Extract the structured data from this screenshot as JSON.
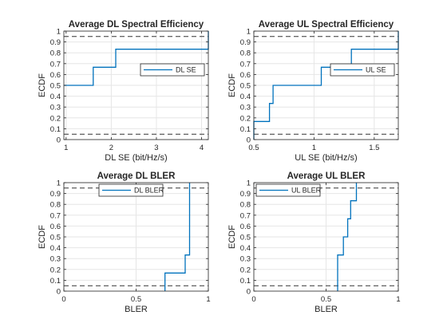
{
  "figure": {
    "background": "#ffffff"
  },
  "chart_data": [
    {
      "type": "line",
      "step": true,
      "title": "Average DL Spectral Efficiency",
      "xlabel": "DL SE (bit/Hz/s)",
      "ylabel": "ECDF",
      "xlim": [
        0.95,
        4.15
      ],
      "ylim": [
        0,
        1
      ],
      "xticks": [
        1,
        2,
        3,
        4
      ],
      "xtick_labels": [
        "1",
        "2",
        "3",
        "4"
      ],
      "yticks": [
        0,
        0.1,
        0.2,
        0.3,
        0.4,
        0.5,
        0.6,
        0.7,
        0.8,
        0.9,
        1
      ],
      "ytick_labels": [
        "0",
        "0.1",
        "0.2",
        "0.3",
        "0.4",
        "0.5",
        "0.6",
        "0.7",
        "0.8",
        "0.9",
        "1"
      ],
      "grid": true,
      "legend_position": "right",
      "reference_lines": [
        0.05,
        0.95
      ],
      "series": [
        {
          "name": "DL SE",
          "color": "#0072BD",
          "x": [
            0.95,
            1.6,
            1.6,
            2.1,
            2.1,
            4.15,
            4.15
          ],
          "y": [
            0.5,
            0.5,
            0.667,
            0.667,
            0.833,
            0.833,
            1.0
          ]
        }
      ]
    },
    {
      "type": "line",
      "step": true,
      "title": "Average UL Spectral Efficiency",
      "xlabel": "UL SE (bit/Hz/s)",
      "ylabel": "ECDF",
      "xlim": [
        0.5,
        1.7
      ],
      "ylim": [
        0,
        1
      ],
      "xticks": [
        0.5,
        1,
        1.5
      ],
      "xtick_labels": [
        "0.5",
        "1",
        "1.5"
      ],
      "yticks": [
        0,
        0.1,
        0.2,
        0.3,
        0.4,
        0.5,
        0.6,
        0.7,
        0.8,
        0.9,
        1
      ],
      "ytick_labels": [
        "0",
        "0.1",
        "0.2",
        "0.3",
        "0.4",
        "0.5",
        "0.6",
        "0.7",
        "0.8",
        "0.9",
        "1"
      ],
      "grid": true,
      "legend_position": "right",
      "reference_lines": [
        0.05,
        0.95
      ],
      "series": [
        {
          "name": "UL SE",
          "color": "#0072BD",
          "x": [
            0.5,
            0.5,
            0.63,
            0.63,
            0.66,
            0.66,
            1.06,
            1.06,
            1.31,
            1.31,
            1.7,
            1.7
          ],
          "y": [
            0,
            0.167,
            0.167,
            0.333,
            0.333,
            0.5,
            0.5,
            0.667,
            0.667,
            0.833,
            0.833,
            1.0
          ]
        }
      ]
    },
    {
      "type": "line",
      "step": true,
      "title": "Average DL BLER",
      "xlabel": "BLER",
      "ylabel": "ECDF",
      "xlim": [
        0,
        1
      ],
      "ylim": [
        0,
        1
      ],
      "xticks": [
        0,
        0.5,
        1
      ],
      "xtick_labels": [
        "0",
        "0.5",
        "1"
      ],
      "yticks": [
        0,
        0.1,
        0.2,
        0.3,
        0.4,
        0.5,
        0.6,
        0.7,
        0.8,
        0.9,
        1
      ],
      "ytick_labels": [
        "0",
        "0.1",
        "0.2",
        "0.3",
        "0.4",
        "0.5",
        "0.6",
        "0.7",
        "0.8",
        "0.9",
        "1"
      ],
      "grid": true,
      "legend_position": "top",
      "reference_lines": [
        0.05,
        0.95
      ],
      "series": [
        {
          "name": "DL BLER",
          "color": "#0072BD",
          "x": [
            0.7,
            0.7,
            0.84,
            0.84,
            0.87,
            0.87
          ],
          "y": [
            0,
            0.167,
            0.167,
            0.333,
            0.333,
            1.0
          ]
        }
      ]
    },
    {
      "type": "line",
      "step": true,
      "title": "Average UL BLER",
      "xlabel": "BLER",
      "ylabel": "ECDF",
      "xlim": [
        0,
        1
      ],
      "ylim": [
        0,
        1
      ],
      "xticks": [
        0,
        0.5,
        1
      ],
      "xtick_labels": [
        "0",
        "0.5",
        "1"
      ],
      "yticks": [
        0,
        0.1,
        0.2,
        0.3,
        0.4,
        0.5,
        0.6,
        0.7,
        0.8,
        0.9,
        1
      ],
      "ytick_labels": [
        "0",
        "0.1",
        "0.2",
        "0.3",
        "0.4",
        "0.5",
        "0.6",
        "0.7",
        "0.8",
        "0.9",
        "1"
      ],
      "grid": true,
      "legend_position": "top-left",
      "reference_lines": [
        0.05,
        0.95
      ],
      "series": [
        {
          "name": "UL BLER",
          "color": "#0072BD",
          "x": [
            0.58,
            0.58,
            0.62,
            0.62,
            0.65,
            0.65,
            0.67,
            0.67,
            0.71,
            0.71
          ],
          "y": [
            0,
            0.333,
            0.333,
            0.5,
            0.5,
            0.667,
            0.667,
            0.833,
            0.833,
            1.0
          ]
        }
      ]
    }
  ]
}
